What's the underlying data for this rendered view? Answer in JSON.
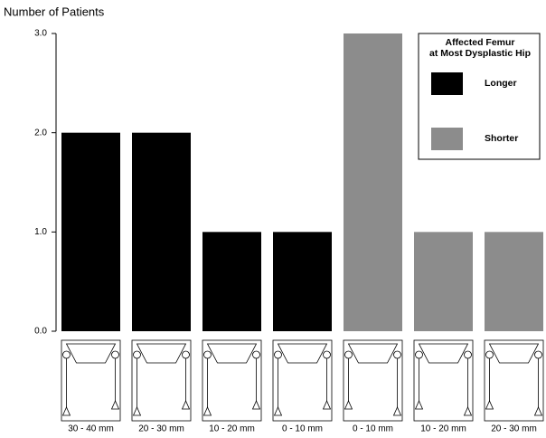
{
  "chart_data": {
    "type": "bar",
    "y_label": "Number of Patients",
    "legend_title": [
      "Affected Femur",
      "at Most Dysplastic Hip"
    ],
    "categories": [
      "30 - 40 mm",
      "20 - 30 mm",
      "10 - 20 mm",
      "0 - 10 mm",
      "0 - 10 mm",
      "10 - 20 mm",
      "20 - 30 mm"
    ],
    "series": [
      {
        "name": "Longer",
        "color": "#000000",
        "values": [
          2,
          2,
          1,
          1,
          null,
          null,
          null
        ]
      },
      {
        "name": "Shorter",
        "color": "#8c8c8c",
        "values": [
          null,
          null,
          null,
          null,
          3,
          1,
          1
        ]
      }
    ],
    "ylim": [
      0,
      3
    ],
    "yticks": [
      {
        "value": 0,
        "label": "0.0"
      },
      {
        "value": 1,
        "label": "1.0"
      },
      {
        "value": 2,
        "label": "2.0"
      },
      {
        "value": 3,
        "label": "3.0"
      }
    ],
    "legend_position": "upper right"
  }
}
